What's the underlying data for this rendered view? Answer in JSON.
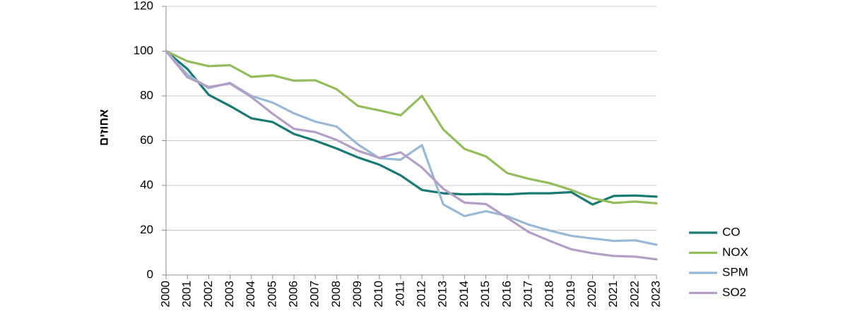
{
  "chart_data": {
    "type": "line",
    "title": "",
    "xlabel": "",
    "ylabel": "אחוזים",
    "ylim": [
      0,
      120
    ],
    "yticks": [
      0,
      20,
      40,
      60,
      80,
      100,
      120
    ],
    "grid": "horizontal",
    "legend_position": "right",
    "x": [
      "2000",
      "2001",
      "2002",
      "2003",
      "2004",
      "2005",
      "2006",
      "2007",
      "2008",
      "2009",
      "2010",
      "2011",
      "2012",
      "2013",
      "2014",
      "2015",
      "2016",
      "2017",
      "2018",
      "2019",
      "2020",
      "2021",
      "2022",
      "2023"
    ],
    "series": [
      {
        "name": "CO",
        "color": "#187a72",
        "values": [
          100,
          92,
          80.5,
          75.5,
          70,
          68.3,
          63,
          60,
          56.5,
          52.5,
          49.3,
          44.5,
          38,
          36.5,
          36,
          36.2,
          36,
          36.5,
          36.5,
          37,
          31.5,
          35.3,
          35.5,
          35
        ]
      },
      {
        "name": "NOX",
        "color": "#93bd5a",
        "values": [
          100,
          95.5,
          93.3,
          93.7,
          88.5,
          89.2,
          86.8,
          87,
          83,
          75.5,
          73.5,
          71.3,
          80,
          65,
          56.3,
          53,
          45.5,
          43,
          41,
          38,
          34.3,
          32.2,
          32.8,
          32
        ]
      },
      {
        "name": "SPM",
        "color": "#97b9d6",
        "values": [
          100,
          89.5,
          83.5,
          85.8,
          80,
          77,
          72.2,
          68.5,
          66.3,
          58.3,
          52.2,
          51.5,
          58,
          31.5,
          26.3,
          28.5,
          26.3,
          22.5,
          19.8,
          17.5,
          16.3,
          15.2,
          15.5,
          13.5
        ]
      },
      {
        "name": "SO2",
        "color": "#b59ec6",
        "values": [
          100,
          88.3,
          84,
          85.5,
          79.5,
          72,
          65.3,
          63.8,
          60.3,
          55.5,
          52.3,
          54.8,
          48,
          38.5,
          32.3,
          31.7,
          25.5,
          19.2,
          15.2,
          11.5,
          9.7,
          8.5,
          8.2,
          7
        ]
      }
    ]
  }
}
